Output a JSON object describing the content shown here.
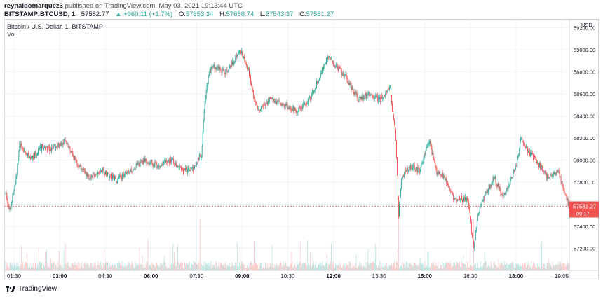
{
  "header": {
    "author": "reynaldomarquez3",
    "published": "published on TradingView.com, May 03, 2021 19:13:44 UTC",
    "symbol": "BITSTAMP:BTCUSD, 1",
    "last": "57582.77",
    "change": "▲ +960.11 (+1.7%)",
    "o_label": "O:",
    "o_val": "57653.34",
    "h_label": "H:",
    "h_val": "57658.74",
    "l_label": "L:",
    "l_val": "57543.37",
    "c_label": "C:",
    "c_val": "57581.27"
  },
  "legend": {
    "title": "Bitcoin / U.S. Dollar, 1, BITSTAMP",
    "vol": "Vol"
  },
  "footer": {
    "brand": "TradingView"
  },
  "colors": {
    "up": "#26a69a",
    "down": "#ef5350",
    "axis": "#d1d4dc",
    "text": "#131722",
    "grid": "#f0f3fa"
  },
  "icons": {
    "brand": "tradingview-logo-icon"
  },
  "chart_data": {
    "type": "candlestick",
    "y_axis": {
      "currency": "USD",
      "ticks": [
        57200,
        57400,
        57600,
        57800,
        58000,
        58200,
        58400,
        58600,
        58800,
        59000,
        59200
      ],
      "range": [
        57000,
        59280
      ]
    },
    "x_axis": {
      "ticks": [
        "01:30",
        "03:00",
        "04:30",
        "06:00",
        "07:30",
        "09:00",
        "10:30",
        "12:00",
        "13:30",
        "15:00",
        "16:30",
        "18:00",
        "19:05"
      ],
      "bold": [
        "03:00",
        "06:00",
        "09:00",
        "12:00",
        "15:00",
        "18:00"
      ]
    },
    "price_label": {
      "value": "57581.27",
      "countdown": "00:17",
      "color": "#ef5350"
    },
    "path": [
      [
        0,
        57700
      ],
      [
        6,
        57550
      ],
      [
        14,
        57780
      ],
      [
        20,
        58150
      ],
      [
        36,
        58000
      ],
      [
        52,
        58120
      ],
      [
        70,
        58100
      ],
      [
        86,
        58180
      ],
      [
        100,
        58000
      ],
      [
        120,
        57850
      ],
      [
        140,
        57900
      ],
      [
        160,
        57820
      ],
      [
        180,
        57900
      ],
      [
        200,
        58000
      ],
      [
        220,
        57950
      ],
      [
        240,
        58000
      ],
      [
        256,
        57900
      ],
      [
        270,
        57920
      ],
      [
        278,
        58020
      ],
      [
        282,
        58050
      ],
      [
        286,
        58450
      ],
      [
        292,
        58780
      ],
      [
        300,
        58850
      ],
      [
        316,
        58800
      ],
      [
        330,
        58900
      ],
      [
        338,
        59000
      ],
      [
        350,
        58820
      ],
      [
        358,
        58550
      ],
      [
        364,
        58450
      ],
      [
        380,
        58550
      ],
      [
        400,
        58500
      ],
      [
        420,
        58450
      ],
      [
        438,
        58550
      ],
      [
        452,
        58750
      ],
      [
        464,
        58950
      ],
      [
        472,
        58880
      ],
      [
        490,
        58750
      ],
      [
        508,
        58550
      ],
      [
        524,
        58600
      ],
      [
        540,
        58550
      ],
      [
        554,
        58650
      ],
      [
        558,
        58400
      ],
      [
        562,
        58200
      ],
      [
        566,
        57500
      ],
      [
        570,
        57850
      ],
      [
        582,
        57950
      ],
      [
        596,
        57900
      ],
      [
        610,
        58180
      ],
      [
        620,
        57900
      ],
      [
        632,
        57850
      ],
      [
        646,
        57650
      ],
      [
        656,
        57650
      ],
      [
        666,
        57650
      ],
      [
        674,
        57200
      ],
      [
        680,
        57500
      ],
      [
        692,
        57700
      ],
      [
        704,
        57850
      ],
      [
        716,
        57650
      ],
      [
        726,
        57800
      ],
      [
        736,
        57950
      ],
      [
        742,
        58200
      ],
      [
        750,
        58100
      ],
      [
        764,
        58000
      ],
      [
        780,
        57850
      ],
      [
        796,
        57900
      ],
      [
        808,
        57650
      ],
      [
        812,
        57580
      ]
    ]
  }
}
